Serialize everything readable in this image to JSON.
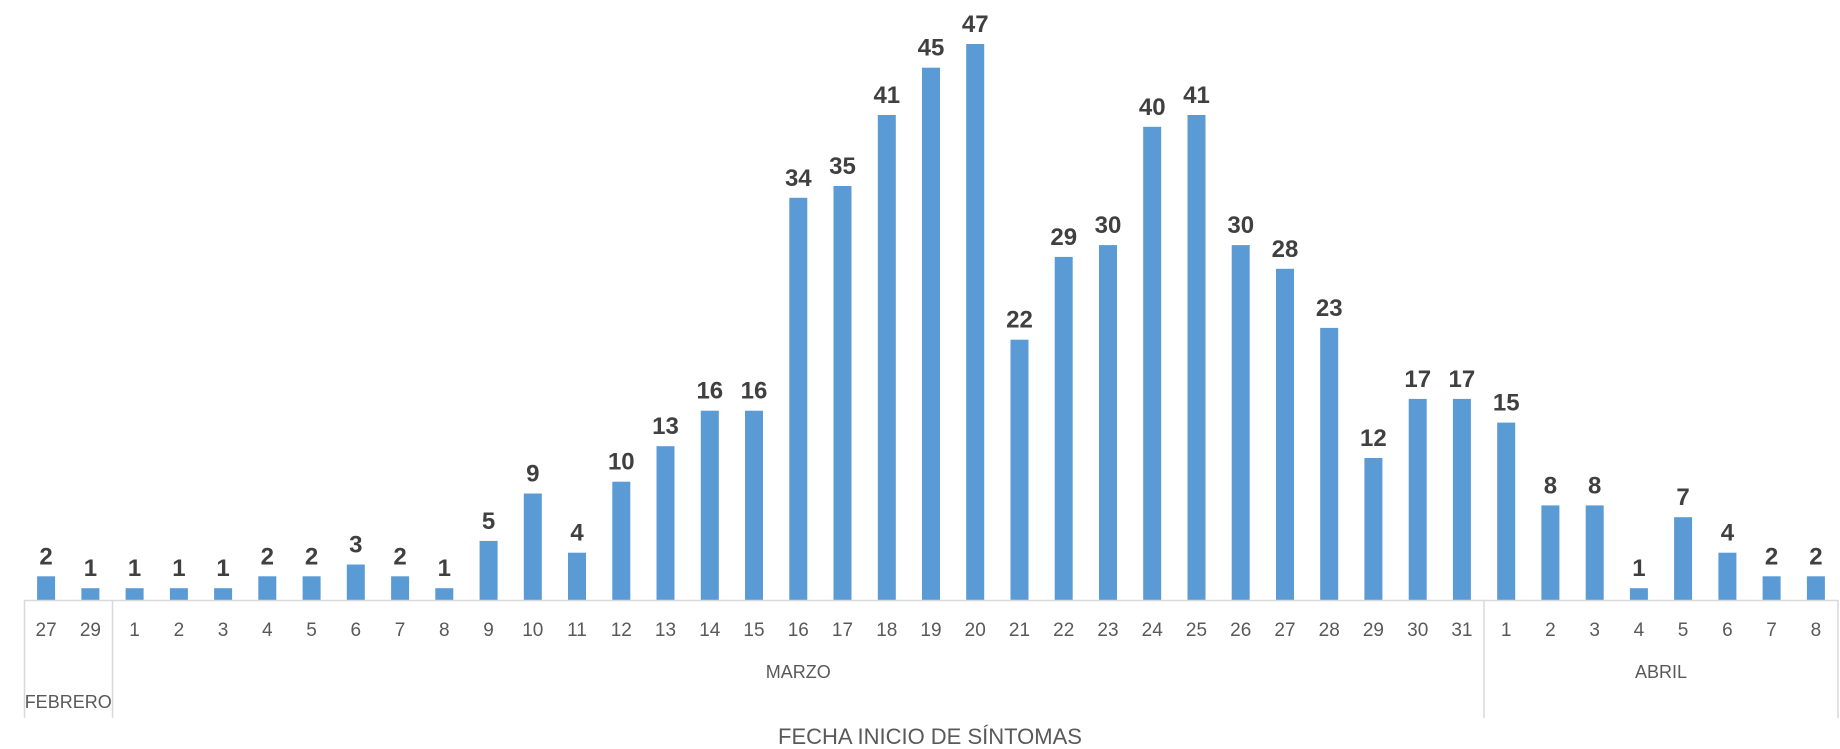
{
  "chart_data": {
    "type": "bar",
    "xlabel": "FECHA INICIO DE SÍNTOMAS",
    "ylabel": "",
    "title": "",
    "ylim": [
      0,
      47
    ],
    "grid": false,
    "legend": "none",
    "bar_color": "#5b9bd5",
    "categories": [
      "27",
      "29",
      "1",
      "2",
      "3",
      "4",
      "5",
      "6",
      "7",
      "8",
      "9",
      "10",
      "11",
      "12",
      "13",
      "14",
      "15",
      "16",
      "17",
      "18",
      "19",
      "20",
      "21",
      "22",
      "23",
      "24",
      "25",
      "26",
      "27",
      "28",
      "29",
      "30",
      "31",
      "1",
      "2",
      "3",
      "4",
      "5",
      "6",
      "7",
      "8"
    ],
    "values": [
      2,
      1,
      1,
      1,
      1,
      2,
      2,
      3,
      2,
      1,
      5,
      9,
      4,
      10,
      13,
      16,
      16,
      34,
      35,
      41,
      45,
      47,
      22,
      29,
      30,
      40,
      41,
      30,
      28,
      23,
      12,
      17,
      17,
      15,
      8,
      8,
      1,
      7,
      4,
      2,
      2
    ],
    "groups": [
      {
        "label": "FEBRERO",
        "count": 2
      },
      {
        "label": "MARZO",
        "count": 31
      },
      {
        "label": "ABRIL",
        "count": 8
      }
    ]
  }
}
